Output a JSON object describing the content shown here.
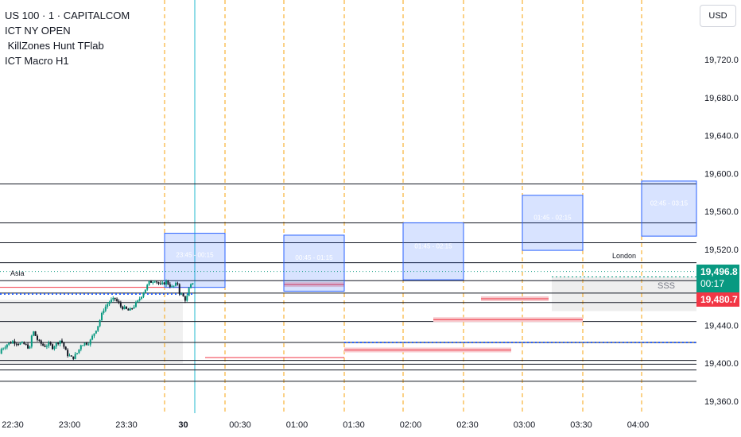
{
  "legend": {
    "symbol": "US 100 · 1 · CAPITALCOM",
    "indicator1": "ICT NY OPEN",
    "indicator2": " KillZones Hunt TFlab",
    "indicator3": "ICT Macro H1"
  },
  "currency": "USD",
  "price_tags": {
    "current_price": "19,496.8",
    "countdown": "00:17",
    "secondary_price": "19,480.7"
  },
  "session_labels": {
    "asia": "Asia",
    "london": "London"
  },
  "sss_label": "SSS",
  "colors": {
    "up": "#089981",
    "down": "#131722",
    "session_line": "#f7a30c",
    "macro_box": "#2962ff",
    "red_level": "#f23645",
    "blue_dotted": "#2962ff",
    "cursor": "#22b8cf"
  },
  "chart_data": {
    "type": "candlestick",
    "y_axis": {
      "label": "USD",
      "range": [
        19345,
        19760
      ],
      "ticks": [
        "19,360.0",
        "19,400.0",
        "19,440.0",
        "19,480.0",
        "19,520.0",
        "19,560.0",
        "19,600.0",
        "19,640.0",
        "19,680.0",
        "19,720.0"
      ]
    },
    "x_axis": {
      "ticks": [
        "22:30",
        "23:00",
        "23:30",
        "30",
        "00:30",
        "01:00",
        "01:30",
        "02:00",
        "02:30",
        "03:00",
        "03:30",
        "04:00"
      ]
    },
    "macro_boxes": [
      {
        "label": "23:45 - 00:15",
        "top": 19537,
        "bottom": 19480
      },
      {
        "label": "00:45 - 01:15",
        "top": 19535,
        "bottom": 19476
      },
      {
        "label": "01:45 - 02:15",
        "top": 19548,
        "bottom": 19488
      },
      {
        "label": "01:45 - 02:15",
        "top": 19577,
        "bottom": 19519
      },
      {
        "label": "02:45 - 03:15",
        "top": 19592,
        "bottom": 19534
      }
    ],
    "horizontal_levels": [
      19589,
      19548,
      19527,
      19506,
      19487,
      19474,
      19464,
      19444,
      19422,
      19403,
      19399,
      19393,
      19381
    ],
    "price_path": [
      [
        -1,
        19428
      ],
      [
        -0.9,
        19424
      ],
      [
        -0.85,
        19410
      ],
      [
        -0.75,
        19420
      ],
      [
        -0.7,
        19418
      ],
      [
        -0.6,
        19410
      ],
      [
        -0.5,
        19402
      ],
      [
        -0.45,
        19388
      ],
      [
        -0.4,
        19395
      ],
      [
        -0.3,
        19405
      ],
      [
        -0.2,
        19415
      ],
      [
        -0.1,
        19420
      ],
      [
        0.0,
        19423
      ],
      [
        0.1,
        19421
      ],
      [
        0.2,
        19420
      ],
      [
        0.3,
        19416
      ],
      [
        0.35,
        19435
      ],
      [
        0.45,
        19423
      ],
      [
        0.55,
        19418
      ],
      [
        0.65,
        19420
      ],
      [
        0.7,
        19417
      ],
      [
        0.85,
        19425
      ],
      [
        0.95,
        19410
      ],
      [
        1.05,
        19405
      ],
      [
        1.15,
        19412
      ],
      [
        1.2,
        19420
      ],
      [
        1.35,
        19422
      ],
      [
        1.5,
        19440
      ],
      [
        1.6,
        19457
      ],
      [
        1.7,
        19465
      ],
      [
        1.8,
        19468
      ],
      [
        1.9,
        19460
      ],
      [
        2.05,
        19455
      ],
      [
        2.2,
        19465
      ],
      [
        2.3,
        19475
      ],
      [
        2.4,
        19485
      ],
      [
        2.5,
        19488
      ],
      [
        2.6,
        19482
      ],
      [
        2.7,
        19486
      ],
      [
        2.8,
        19480
      ],
      [
        2.9,
        19484
      ],
      [
        2.93,
        19475
      ],
      [
        3.0,
        19470
      ],
      [
        3.05,
        19466
      ],
      [
        3.1,
        19478
      ],
      [
        3.18,
        19487
      ]
    ],
    "current_price": 19496.8,
    "secondary_price": 19480.7
  }
}
